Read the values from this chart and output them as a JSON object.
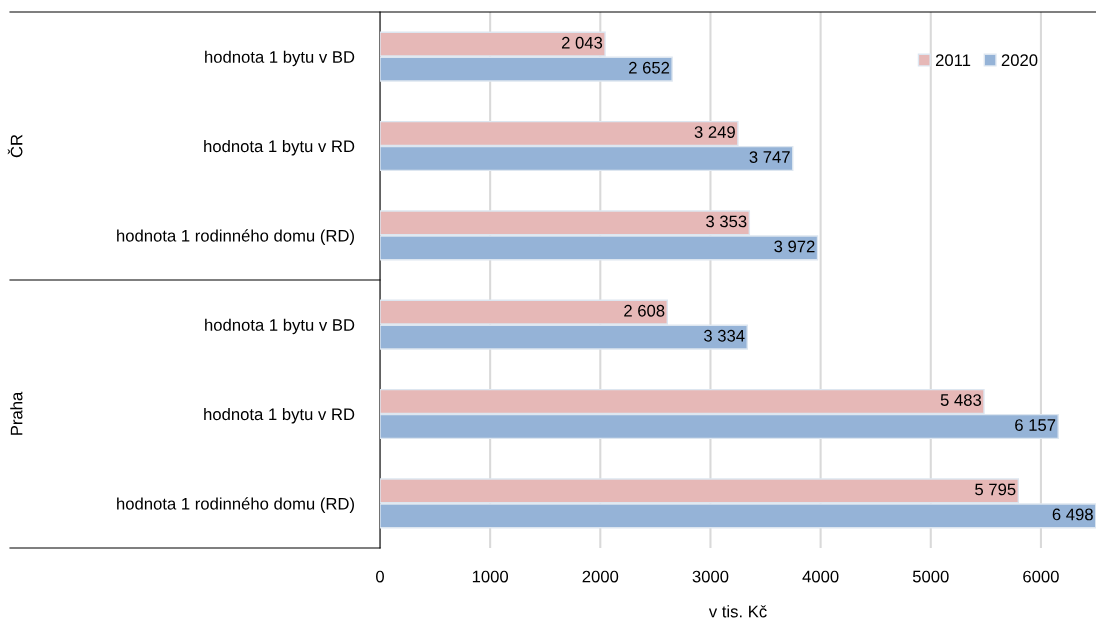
{
  "chart_data": {
    "type": "bar",
    "orientation": "horizontal",
    "xlabel": "v tis. Kč",
    "categories": [
      "hodnota 1 bytu v BD",
      "hodnota 1 bytu v RD",
      "hodnota 1 rodinného domu (RD)",
      "hodnota 1 bytu v BD",
      "hodnota 1 bytu v RD",
      "hodnota 1 rodinného domu (RD)"
    ],
    "series": [
      {
        "name": "2011",
        "color": "#e6b8b7",
        "values": [
          2043,
          3249,
          3353,
          2608,
          5483,
          5795
        ],
        "value_labels": [
          "2 043",
          "3 249",
          "3 353",
          "2 608",
          "5 483",
          "5 795"
        ]
      },
      {
        "name": "2020",
        "color": "#95b3d7",
        "values": [
          2652,
          3747,
          3972,
          3334,
          6157,
          6498
        ],
        "value_labels": [
          "2 652",
          "3 747",
          "3 972",
          "3 334",
          "6 157",
          "6 498"
        ]
      }
    ],
    "annotations": [
      "ČR",
      "Praha"
    ],
    "xlim": [
      0,
      6500
    ],
    "xticks": [
      0,
      1000,
      2000,
      3000,
      4000,
      5000,
      6000
    ],
    "grid": "x",
    "legend": "top right"
  }
}
